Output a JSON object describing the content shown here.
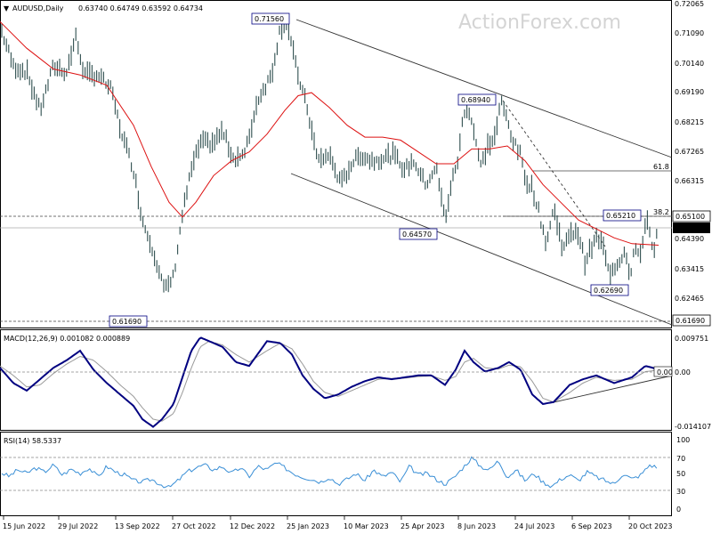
{
  "chart_data": {
    "type": "line",
    "title": "AUDUSD,Daily",
    "ohlc_readout": "0.63740 0.64749 0.63592 0.64734",
    "watermark": "ActionForex.com",
    "colors": {
      "price": "#2f4f4f",
      "ma": "#dd1111",
      "macd": "#000080",
      "signal": "#9a9a9a",
      "rsi": "#3a8fd6",
      "trend": "#333333"
    },
    "x_ticks": [
      "15 Jun 2022",
      "29 Jul 2022",
      "13 Sep 2022",
      "27 Oct 2022",
      "12 Dec 2022",
      "25 Jan 2023",
      "10 Mar 2023",
      "25 Apr 2023",
      "8 Jun 2023",
      "24 Jul 2023",
      "6 Sep 2023",
      "20 Oct 2023"
    ],
    "price_axis": {
      "range": [
        0.6134,
        0.7216
      ],
      "ticks": [
        "0.72065",
        "0.71090",
        "0.70140",
        "0.69190",
        "0.68215",
        "0.67265",
        "0.66315",
        "0.65100",
        "0.64390",
        "0.63415",
        "0.62465",
        "0.61690"
      ]
    },
    "last_price": "0.64734",
    "price_series": [
      {
        "name": "price",
        "x": [
          0,
          15,
          30,
          45,
          60,
          75,
          85,
          95,
          110,
          125,
          135,
          150,
          160,
          172,
          185,
          195,
          205,
          215,
          225,
          240,
          250,
          262,
          275,
          290,
          305,
          315,
          322,
          327,
          333,
          345,
          357,
          370,
          383,
          395,
          405,
          418,
          430,
          442,
          455,
          465,
          478,
          490,
          500,
          507,
          515,
          520,
          525,
          532,
          540,
          548,
          556,
          563,
          570,
          577,
          585,
          590,
          598,
          606,
          614,
          622,
          632,
          640,
          647,
          652,
          657,
          664,
          670,
          677,
          684,
          690,
          697,
          703,
          708,
          713,
          720,
          726,
          730,
          735,
          740
        ],
        "y": [
          0.714,
          0.7005,
          0.6985,
          0.6855,
          0.7005,
          0.6985,
          0.7105,
          0.6975,
          0.6975,
          0.6925,
          0.6795,
          0.6655,
          0.6485,
          0.6385,
          0.6245,
          0.6295,
          0.6505,
          0.6655,
          0.6745,
          0.6745,
          0.6785,
          0.6695,
          0.6705,
          0.6895,
          0.6975,
          0.7135,
          0.7155,
          0.7085,
          0.6995,
          0.6865,
          0.6685,
          0.6705,
          0.6605,
          0.6675,
          0.6705,
          0.6685,
          0.6695,
          0.6705,
          0.6655,
          0.6685,
          0.6605,
          0.6665,
          0.6485,
          0.6605,
          0.6695,
          0.6825,
          0.6875,
          0.6795,
          0.6665,
          0.6735,
          0.6765,
          0.6885,
          0.6825,
          0.6745,
          0.6705,
          0.6625,
          0.6595,
          0.6505,
          0.6405,
          0.6525,
          0.6395,
          0.6425,
          0.6455,
          0.6415,
          0.6345,
          0.6385,
          0.6425,
          0.6405,
          0.6305,
          0.6325,
          0.6355,
          0.6385,
          0.6295,
          0.6395,
          0.6355,
          0.6505,
          0.6445,
          0.6375,
          0.6473
        ]
      },
      {
        "name": "ma",
        "x": [
          0,
          30,
          60,
          90,
          120,
          150,
          170,
          190,
          205,
          220,
          240,
          260,
          280,
          300,
          320,
          335,
          350,
          370,
          390,
          410,
          430,
          450,
          470,
          490,
          510,
          530,
          550,
          570,
          590,
          610,
          630,
          650,
          670,
          690,
          710,
          740
        ],
        "y": [
          0.7155,
          0.7065,
          0.6995,
          0.6975,
          0.694,
          0.6805,
          0.6665,
          0.6545,
          0.6495,
          0.6545,
          0.6635,
          0.6685,
          0.6715,
          0.6775,
          0.6855,
          0.6905,
          0.6915,
          0.6865,
          0.6805,
          0.6765,
          0.6765,
          0.6755,
          0.6715,
          0.6675,
          0.6675,
          0.6725,
          0.6725,
          0.6735,
          0.6685,
          0.6605,
          0.6545,
          0.6485,
          0.6455,
          0.6425,
          0.6405,
          0.64
        ]
      }
    ],
    "annotations": {
      "price_labels": [
        "0.71560",
        "0.68940",
        "0.65210",
        "0.64570",
        "0.62690",
        "0.61690"
      ],
      "fib_labels": [
        "61.8",
        "38.2"
      ],
      "right_labels": [
        "0.65100",
        "0.61690"
      ]
    },
    "macd": {
      "label": "MACD(12,26,9) 0.001082 0.000889",
      "range": [
        -0.0141,
        0.009751
      ],
      "ticks": [
        "0.009751",
        "0.00",
        "-0.014107"
      ],
      "zero_label": "0.00",
      "x": [
        0,
        15,
        30,
        45,
        60,
        75,
        90,
        105,
        120,
        135,
        150,
        160,
        172,
        182,
        195,
        205,
        215,
        225,
        235,
        250,
        265,
        280,
        300,
        315,
        328,
        340,
        352,
        365,
        380,
        395,
        410,
        425,
        440,
        455,
        470,
        485,
        500,
        512,
        522,
        532,
        545,
        560,
        572,
        585,
        598,
        610,
        622,
        640,
        655,
        670,
        690,
        710,
        725,
        740
      ],
      "macd": [
        0.0015,
        -0.0025,
        -0.0045,
        -0.0015,
        0.0015,
        0.0035,
        0.006,
        0.001,
        -0.0025,
        -0.0055,
        -0.0085,
        -0.012,
        -0.014,
        -0.012,
        -0.008,
        -0.001,
        0.006,
        0.0095,
        0.0085,
        0.007,
        0.003,
        0.002,
        0.0085,
        0.008,
        0.005,
        -0.0005,
        -0.004,
        -0.0065,
        -0.0055,
        -0.0035,
        -0.002,
        -0.001,
        -0.0015,
        -0.001,
        -0.0005,
        -0.0005,
        -0.003,
        0.001,
        0.006,
        0.003,
        0.0005,
        0.0015,
        0.003,
        0.001,
        -0.0055,
        -0.008,
        -0.0075,
        -0.003,
        -0.0015,
        -0.0005,
        -0.0025,
        -0.001,
        0.002,
        0.0011
      ],
      "signal": [
        0.002,
        -0.0005,
        -0.0035,
        -0.003,
        0.0,
        0.0025,
        0.0045,
        0.0035,
        0.0005,
        -0.003,
        -0.006,
        -0.009,
        -0.012,
        -0.0125,
        -0.0105,
        -0.005,
        0.0015,
        0.007,
        0.0085,
        0.0075,
        0.005,
        0.003,
        0.006,
        0.008,
        0.0065,
        0.0025,
        -0.002,
        -0.005,
        -0.006,
        -0.0045,
        -0.003,
        -0.0015,
        -0.0013,
        -0.0012,
        -0.0008,
        -0.0006,
        -0.0018,
        -0.0008,
        0.003,
        0.004,
        0.0015,
        0.0012,
        0.0022,
        0.0018,
        -0.002,
        -0.0065,
        -0.0075,
        -0.005,
        -0.0025,
        -0.001,
        -0.0018,
        -0.0015,
        0.0005,
        0.0009
      ]
    },
    "rsi": {
      "label": "RSI(14) 58.5337",
      "range": [
        0,
        100
      ],
      "ticks": [
        "100",
        "70",
        "50",
        "30",
        "0"
      ],
      "x": [
        0,
        10,
        20,
        30,
        40,
        50,
        60,
        70,
        80,
        90,
        100,
        110,
        120,
        130,
        140,
        150,
        160,
        170,
        180,
        190,
        200,
        210,
        220,
        230,
        240,
        250,
        260,
        270,
        280,
        290,
        300,
        310,
        320,
        330,
        340,
        350,
        360,
        370,
        380,
        390,
        400,
        410,
        420,
        430,
        440,
        450,
        460,
        470,
        480,
        490,
        500,
        510,
        520,
        530,
        540,
        550,
        560,
        570,
        580,
        590,
        600,
        610,
        620,
        630,
        640,
        650,
        660,
        670,
        680,
        690,
        700,
        710,
        720,
        730,
        740
      ],
      "values": [
        52,
        46,
        55,
        50,
        58,
        52,
        62,
        48,
        56,
        50,
        58,
        45,
        60,
        52,
        48,
        40,
        38,
        42,
        35,
        30,
        40,
        52,
        58,
        62,
        55,
        60,
        50,
        58,
        46,
        60,
        55,
        65,
        58,
        50,
        45,
        42,
        38,
        45,
        35,
        42,
        50,
        40,
        55,
        45,
        52,
        38,
        60,
        48,
        50,
        42,
        35,
        44,
        58,
        72,
        60,
        55,
        68,
        45,
        55,
        40,
        50,
        38,
        32,
        42,
        48,
        40,
        52,
        45,
        40,
        35,
        50,
        42,
        48,
        62,
        58
      ]
    }
  }
}
